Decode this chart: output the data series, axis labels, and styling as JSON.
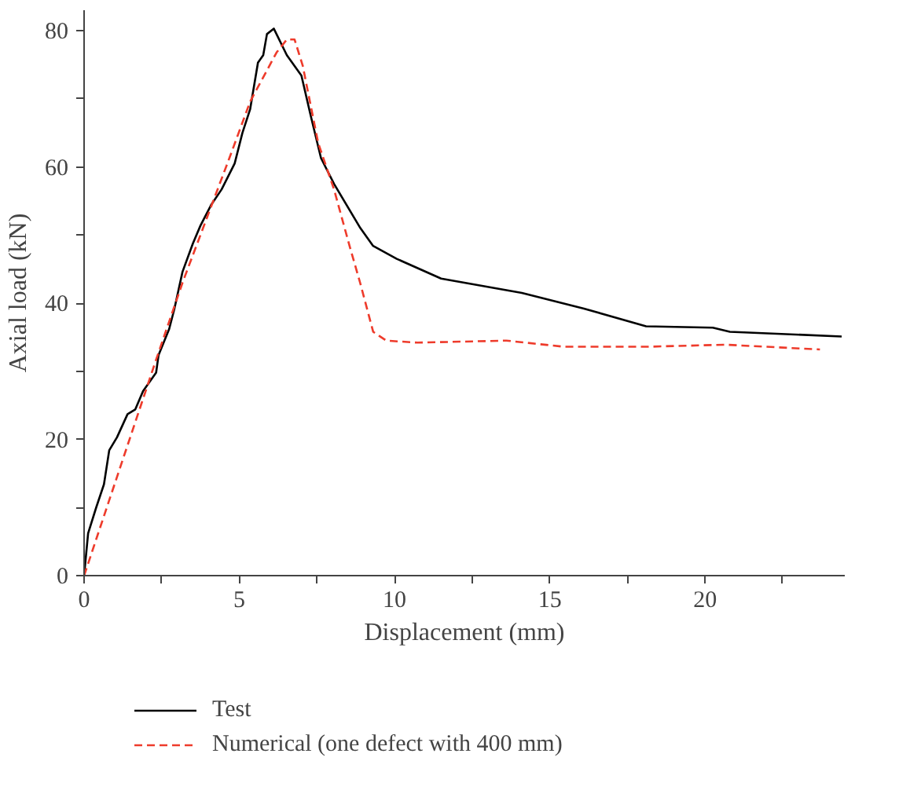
{
  "chart_data": {
    "type": "line",
    "xlabel": "Displacement (mm)",
    "ylabel": "Axial load (kN)",
    "xlim": [
      0,
      24.5
    ],
    "ylim": [
      0,
      83
    ],
    "xticks": [
      0,
      {
        "value": 2.5,
        "label": null
      },
      5,
      {
        "value": 7.5,
        "label": null
      },
      10,
      {
        "value": 12.5,
        "label": null
      },
      15,
      {
        "value": 17.5,
        "label": null
      },
      20,
      {
        "value": 22.5,
        "label": null
      }
    ],
    "yticks": [
      0,
      {
        "value": 10,
        "label": null
      },
      20,
      {
        "value": 30,
        "label": null
      },
      40,
      {
        "value": 50,
        "label": null
      },
      60,
      {
        "value": 70,
        "label": null
      },
      80
    ],
    "grid": false,
    "legend": "bottom",
    "series": [
      {
        "name": "Test",
        "color": "#000000",
        "line_style": "solid",
        "x": [
          0,
          0.13,
          0.39,
          0.64,
          0.81,
          1.06,
          1.4,
          1.65,
          1.9,
          2.32,
          2.4,
          2.74,
          2.91,
          3.17,
          3.5,
          3.75,
          4.09,
          4.43,
          4.85,
          5.1,
          5.35,
          5.6,
          5.77,
          5.89,
          6.11,
          6.53,
          7.0,
          7.29,
          7.63,
          8.05,
          8.9,
          9.31,
          10.07,
          11.5,
          14.1,
          16.1,
          18.1,
          20.25,
          20.8,
          24.4
        ],
        "values": [
          0,
          6.2,
          10,
          13.4,
          18.4,
          20.3,
          23.7,
          24.4,
          27.1,
          29.8,
          32.4,
          36.2,
          39.2,
          44.6,
          48.7,
          51.4,
          54.4,
          56.7,
          60.5,
          65,
          68.5,
          75.3,
          76.4,
          79.5,
          80.3,
          76.4,
          73.4,
          67.7,
          61.3,
          57.5,
          51,
          48.4,
          46.5,
          43.6,
          41.5,
          39.2,
          36.6,
          36.4,
          35.8,
          35.1
        ]
      },
      {
        "name": "Numerical (one defect with 400 mm)",
        "color": "#ee3b2b",
        "line_style": "dashed",
        "x": [
          0,
          2.32,
          3.17,
          4.68,
          5.35,
          6.2,
          6.53,
          6.78,
          7.04,
          7.54,
          8.05,
          8.55,
          8.89,
          9.31,
          9.73,
          10.74,
          13.6,
          15.45,
          18.15,
          20.67,
          23.7
        ],
        "values": [
          0,
          31.7,
          43,
          61.3,
          69.6,
          76.8,
          78.7,
          78.7,
          74.9,
          63.5,
          56.7,
          48.4,
          43,
          35.8,
          34.5,
          34.2,
          34.5,
          33.6,
          33.6,
          33.9,
          33.2
        ]
      }
    ]
  }
}
